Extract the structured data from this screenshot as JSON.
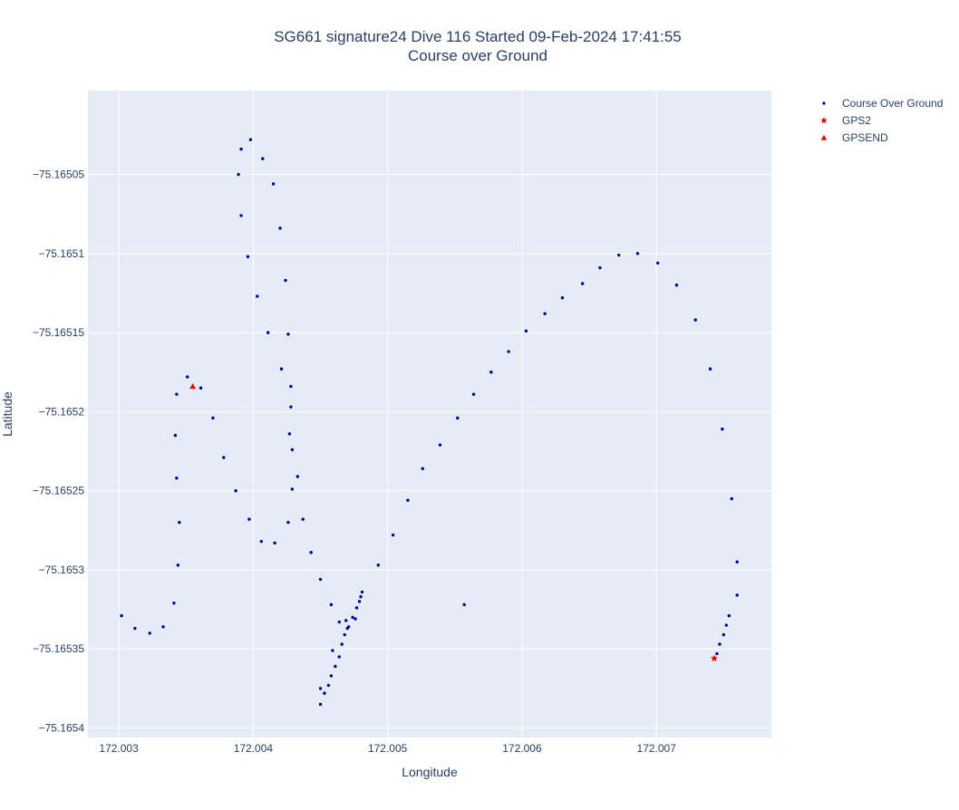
{
  "chart_data": {
    "type": "scatter",
    "title_line1": "SG661 signature24 Dive 116 Started 09-Feb-2024 17:41:55",
    "title_line2": "Course over Ground",
    "xlabel": "Longitude",
    "ylabel": "Latitude",
    "xlim": [
      172.00277,
      172.007855
    ],
    "ylim": [
      -75.165406,
      -75.164997
    ],
    "xticks": [
      172.003,
      172.004,
      172.005,
      172.006,
      172.007
    ],
    "xtick_labels": [
      "172.003",
      "172.004",
      "172.005",
      "172.006",
      "172.007"
    ],
    "yticks": [
      -75.16505,
      -75.1651,
      -75.16515,
      -75.1652,
      -75.16525,
      -75.1653,
      -75.16535,
      -75.1654
    ],
    "ytick_labels": [
      "−75.16505",
      "−75.1651",
      "−75.16515",
      "−75.1652",
      "−75.16525",
      "−75.1653",
      "−75.16535",
      "−75.1654"
    ],
    "grid": true,
    "plot_background": "#e5ecf6",
    "legend_position": "top-right",
    "series": [
      {
        "name": "Course Over Ground",
        "marker": "dot",
        "color": "#00008b",
        "points": [
          [
            172.00398,
            -75.165028
          ],
          [
            172.00391,
            -75.165034
          ],
          [
            172.00407,
            -75.16504
          ],
          [
            172.00389,
            -75.16505
          ],
          [
            172.00415,
            -75.165056
          ],
          [
            172.00391,
            -75.165076
          ],
          [
            172.0042,
            -75.165084
          ],
          [
            172.00396,
            -75.165102
          ],
          [
            172.00424,
            -75.165117
          ],
          [
            172.00403,
            -75.165127
          ],
          [
            172.00411,
            -75.16515
          ],
          [
            172.00426,
            -75.165151
          ],
          [
            172.00421,
            -75.165173
          ],
          [
            172.00351,
            -75.165178
          ],
          [
            172.00361,
            -75.165185
          ],
          [
            172.00428,
            -75.165184
          ],
          [
            172.00343,
            -75.165189
          ],
          [
            172.00428,
            -75.165197
          ],
          [
            172.0037,
            -75.165204
          ],
          [
            172.00427,
            -75.165214
          ],
          [
            172.00342,
            -75.165215
          ],
          [
            172.00429,
            -75.165224
          ],
          [
            172.00378,
            -75.165229
          ],
          [
            172.00433,
            -75.165241
          ],
          [
            172.00343,
            -75.165242
          ],
          [
            172.00429,
            -75.165249
          ],
          [
            172.00387,
            -75.16525
          ],
          [
            172.00397,
            -75.165268
          ],
          [
            172.00437,
            -75.165268
          ],
          [
            172.00426,
            -75.16527
          ],
          [
            172.00345,
            -75.16527
          ],
          [
            172.00406,
            -75.165282
          ],
          [
            172.00416,
            -75.165283
          ],
          [
            172.00443,
            -75.165289
          ],
          [
            172.00344,
            -75.165297
          ],
          [
            172.00493,
            -75.165297
          ],
          [
            172.0045,
            -75.165306
          ],
          [
            172.00341,
            -75.165321
          ],
          [
            172.00458,
            -75.165322
          ],
          [
            172.00481,
            -75.165314
          ],
          [
            172.0048,
            -75.165317
          ],
          [
            172.00479,
            -75.16532
          ],
          [
            172.00477,
            -75.165324
          ],
          [
            172.00302,
            -75.165329
          ],
          [
            172.00474,
            -75.16533
          ],
          [
            172.00476,
            -75.165331
          ],
          [
            172.00469,
            -75.165332
          ],
          [
            172.00464,
            -75.165333
          ],
          [
            172.00333,
            -75.165336
          ],
          [
            172.00312,
            -75.165337
          ],
          [
            172.00471,
            -75.165336
          ],
          [
            172.0047,
            -75.165337
          ],
          [
            172.00323,
            -75.16534
          ],
          [
            172.00468,
            -75.165341
          ],
          [
            172.00466,
            -75.165347
          ],
          [
            172.00459,
            -75.165351
          ],
          [
            172.00464,
            -75.165355
          ],
          [
            172.00461,
            -75.165361
          ],
          [
            172.00458,
            -75.165367
          ],
          [
            172.00456,
            -75.165373
          ],
          [
            172.0045,
            -75.165375
          ],
          [
            172.00453,
            -75.165378
          ],
          [
            172.0045,
            -75.165385
          ],
          [
            172.00504,
            -75.165278
          ],
          [
            172.00515,
            -75.165256
          ],
          [
            172.00526,
            -75.165236
          ],
          [
            172.00539,
            -75.165221
          ],
          [
            172.00552,
            -75.165204
          ],
          [
            172.00564,
            -75.165189
          ],
          [
            172.00577,
            -75.165175
          ],
          [
            172.0059,
            -75.165162
          ],
          [
            172.00603,
            -75.165149
          ],
          [
            172.00617,
            -75.165138
          ],
          [
            172.0063,
            -75.165128
          ],
          [
            172.00645,
            -75.165119
          ],
          [
            172.00658,
            -75.165109
          ],
          [
            172.00672,
            -75.165101
          ],
          [
            172.00686,
            -75.1651
          ],
          [
            172.00701,
            -75.165106
          ],
          [
            172.00715,
            -75.16512
          ],
          [
            172.00729,
            -75.165142
          ],
          [
            172.0074,
            -75.165173
          ],
          [
            172.00749,
            -75.165211
          ],
          [
            172.00756,
            -75.165255
          ],
          [
            172.0076,
            -75.165295
          ],
          [
            172.0076,
            -75.165316
          ],
          [
            172.00557,
            -75.165322
          ],
          [
            172.00754,
            -75.165329
          ],
          [
            172.00752,
            -75.165335
          ],
          [
            172.0075,
            -75.165341
          ],
          [
            172.00747,
            -75.165347
          ],
          [
            172.00745,
            -75.165353
          ]
        ]
      },
      {
        "name": "GPS2",
        "marker": "star",
        "color": "#e00000",
        "points": [
          [
            172.00743,
            -75.165356
          ]
        ]
      },
      {
        "name": "GPSEND",
        "marker": "triangle-up",
        "color": "#e00000",
        "points": [
          [
            172.00355,
            -75.165184
          ]
        ]
      }
    ]
  }
}
